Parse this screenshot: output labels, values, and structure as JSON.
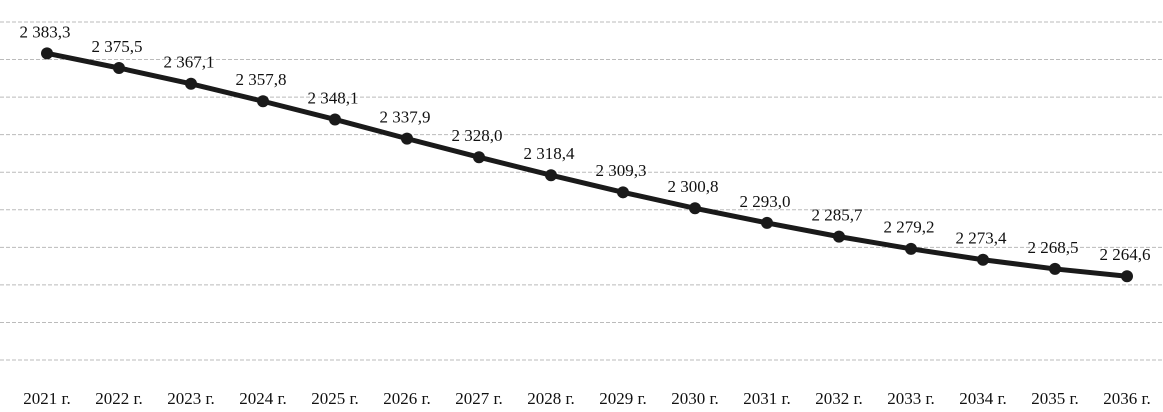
{
  "chart_data": {
    "type": "line",
    "categories": [
      "2021 г.",
      "2022 г.",
      "2023 г.",
      "2024 г.",
      "2025 г.",
      "2026 г.",
      "2027 г.",
      "2028 г.",
      "2029 г.",
      "2030 г.",
      "2031 г.",
      "2032 г.",
      "2033 г.",
      "2034 г.",
      "2035 г.",
      "2036 г."
    ],
    "series": [
      {
        "color": "#1a1a1a",
        "values": [
          2383.3,
          2375.5,
          2367.1,
          2357.8,
          2348.1,
          2337.9,
          2328.0,
          2318.4,
          2309.3,
          2300.8,
          2293.0,
          2285.7,
          2279.2,
          2273.4,
          2268.5,
          2264.6
        ],
        "value_labels": [
          "2 383,3",
          "2 375,5",
          "2 367,1",
          "2 357,8",
          "2 348,1",
          "2 337,9",
          "2 328,0",
          "2 318,4",
          "2 309,3",
          "2 300,8",
          "2 293,0",
          "2 285,7",
          "2 279,2",
          "2 273,4",
          "2 268,5",
          "2 264,6"
        ]
      }
    ],
    "ylim": [
      2220,
      2400
    ],
    "yticks": [
      2220,
      2240,
      2260,
      2280,
      2300,
      2320,
      2340,
      2360,
      2380,
      2400
    ],
    "grid": true
  }
}
